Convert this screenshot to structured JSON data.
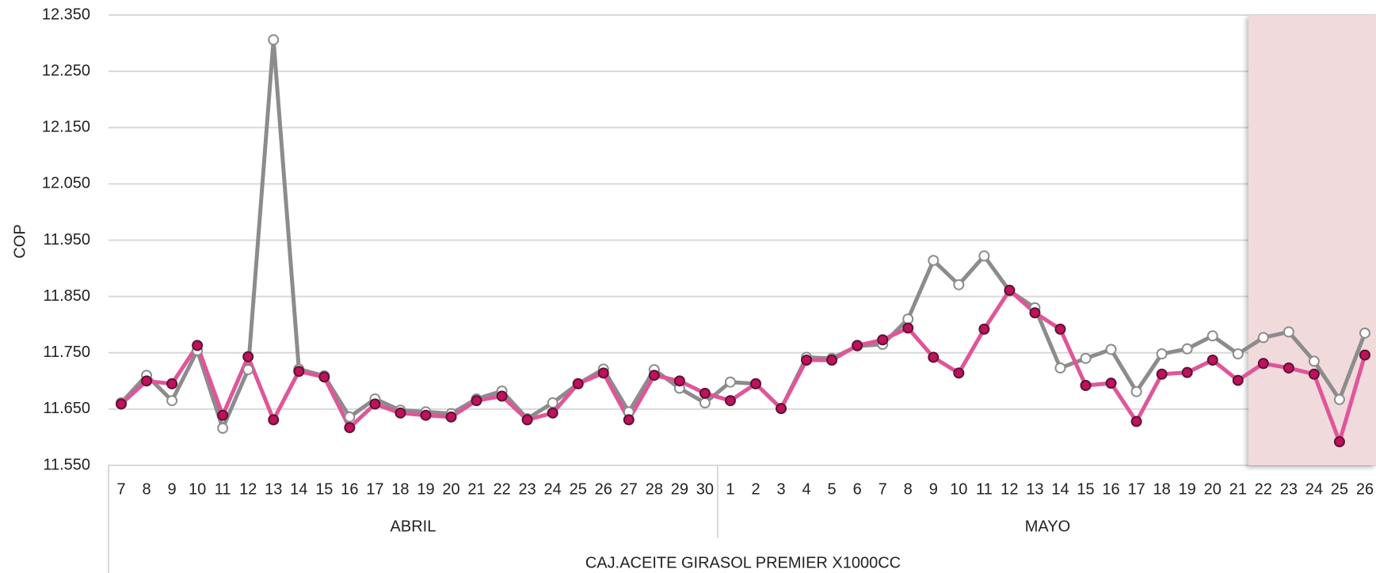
{
  "chart_data": {
    "type": "line",
    "y_label": "COP",
    "x_label": "CAJ.ACEITE GIRASOL PREMIER  X1000CC",
    "category_groups": [
      {
        "label": "ABRIL",
        "days": [
          "7",
          "8",
          "9",
          "10",
          "11",
          "12",
          "13",
          "14",
          "15",
          "16",
          "17",
          "18",
          "19",
          "20",
          "21",
          "22",
          "23",
          "24",
          "25",
          "26",
          "27",
          "28",
          "29",
          "30"
        ]
      },
      {
        "label": "MAYO",
        "days": [
          "1",
          "2",
          "3",
          "4",
          "5",
          "6",
          "7",
          "8",
          "9",
          "10",
          "11",
          "12",
          "13",
          "14",
          "15",
          "16",
          "17",
          "18",
          "19",
          "20",
          "21",
          "22",
          "23",
          "24",
          "25",
          "26"
        ]
      }
    ],
    "series": [
      {
        "color": "#8c8c8c",
        "marker_fill": "#ffffff",
        "marker_stroke": "#8c8c8c",
        "values": [
          11661,
          11710,
          11665,
          11754,
          11616,
          11720,
          12306,
          11721,
          11709,
          11636,
          11668,
          11648,
          11645,
          11642,
          11668,
          11682,
          11633,
          11661,
          11695,
          11721,
          11645,
          11720,
          11687,
          11661,
          11698,
          11695,
          11651,
          11742,
          11740,
          11762,
          11765,
          11810,
          11914,
          11871,
          11922,
          11860,
          11830,
          11723,
          11740,
          11756,
          11681,
          11748,
          11757,
          11780,
          11748,
          11777,
          11787,
          11735,
          11667,
          11785
        ]
      },
      {
        "color": "#e0559a",
        "marker_fill": "#c0105e",
        "marker_stroke": "#5a1530",
        "values": [
          11659,
          11700,
          11695,
          11763,
          11639,
          11743,
          11631,
          11717,
          11707,
          11617,
          11659,
          11643,
          11639,
          11636,
          11665,
          11673,
          11631,
          11643,
          11695,
          11714,
          11631,
          11710,
          11700,
          11678,
          11665,
          11695,
          11651,
          11737,
          11737,
          11763,
          11773,
          11794,
          11742,
          11714,
          11792,
          11861,
          11821,
          11792,
          11692,
          11696,
          11628,
          11712,
          11715,
          11737,
          11701,
          11731,
          11723,
          11712,
          11592,
          11746
        ]
      }
    ],
    "ylim": [
      11550,
      12350
    ],
    "yticks": [
      {
        "value": 11550,
        "label": "11.550"
      },
      {
        "value": 11650,
        "label": "11.650"
      },
      {
        "value": 11750,
        "label": "11.750"
      },
      {
        "value": 11850,
        "label": "11.850"
      },
      {
        "value": 11950,
        "label": "11.950"
      },
      {
        "value": 12050,
        "label": "12.050"
      },
      {
        "value": 12150,
        "label": "12.150"
      },
      {
        "value": 12250,
        "label": "12.250"
      },
      {
        "value": 12350,
        "label": "12.350"
      }
    ],
    "grid": true
  }
}
